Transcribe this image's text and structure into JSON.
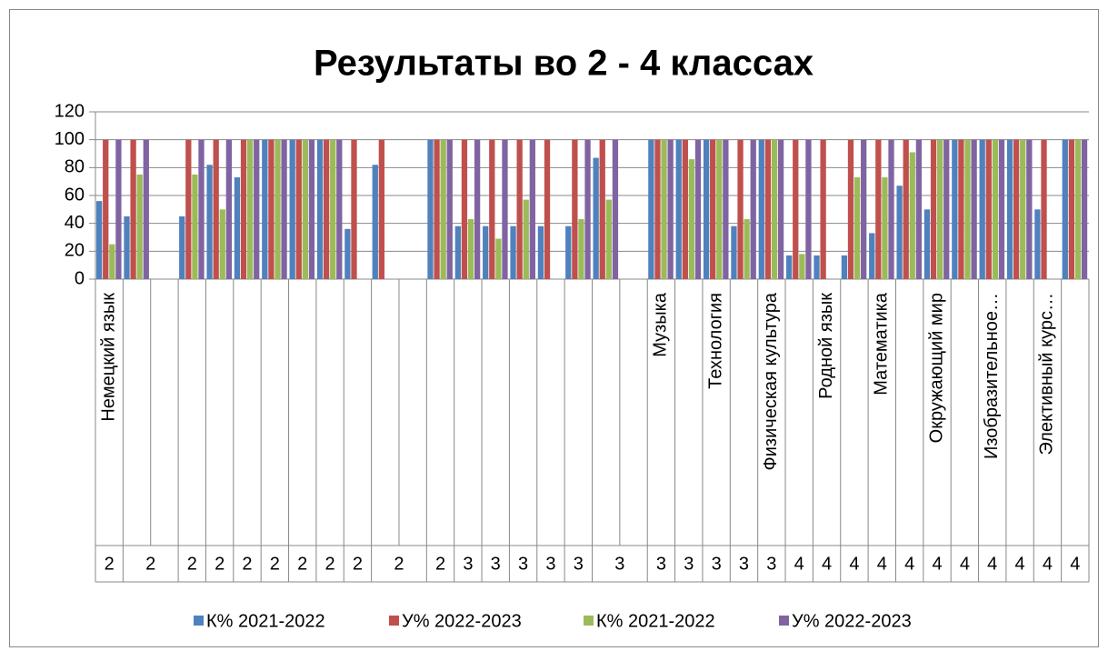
{
  "chart_data": {
    "type": "bar",
    "title": "Результаты во 2 - 4 классах",
    "categories": [
      "Немецкий язык",
      null,
      null,
      null,
      null,
      null,
      null,
      null,
      null,
      null,
      null,
      null,
      null,
      null,
      null,
      null,
      null,
      null,
      null,
      null,
      "Музыка",
      null,
      "Технология",
      null,
      "Физическая культура",
      null,
      "Родной язык",
      null,
      "Математика",
      null,
      "Окружающий мир",
      null,
      "Изобразительное…",
      null,
      "Элективный курс…",
      null
    ],
    "grades": [
      "2",
      "2",
      null,
      "2",
      "2",
      "2",
      "2",
      "2",
      "2",
      "2",
      "2",
      null,
      "2",
      "3",
      "3",
      "3",
      "3",
      "3",
      "3",
      null,
      "3",
      "3",
      "3",
      "3",
      "3",
      "4",
      "4",
      "4",
      "4",
      "4",
      "4",
      "4",
      "4",
      "4",
      "4",
      "4"
    ],
    "series": [
      {
        "name": "К% 2021-2022",
        "color": "#4f81bd",
        "values": [
          56,
          45,
          null,
          45,
          82,
          73,
          100,
          100,
          100,
          36,
          82,
          null,
          100,
          38,
          38,
          38,
          38,
          38,
          87,
          null,
          100,
          100,
          100,
          38,
          100,
          17,
          17,
          17,
          33,
          67,
          50,
          100,
          100,
          100,
          50,
          100
        ]
      },
      {
        "name": "У% 2022-2023",
        "color": "#c0504d",
        "values": [
          100,
          100,
          null,
          100,
          100,
          100,
          100,
          100,
          100,
          100,
          100,
          null,
          100,
          100,
          100,
          100,
          100,
          100,
          100,
          null,
          100,
          100,
          100,
          100,
          100,
          100,
          100,
          100,
          100,
          100,
          100,
          100,
          100,
          100,
          100,
          100
        ]
      },
      {
        "name": "К% 2021-2022",
        "color": "#9bbb59",
        "values": [
          25,
          75,
          null,
          75,
          50,
          100,
          100,
          100,
          100,
          null,
          null,
          null,
          100,
          43,
          29,
          57,
          null,
          43,
          57,
          null,
          100,
          86,
          100,
          43,
          100,
          18,
          null,
          73,
          73,
          91,
          100,
          100,
          100,
          100,
          null,
          100
        ]
      },
      {
        "name": "У% 2022-2023",
        "color": "#8064a2",
        "values": [
          100,
          100,
          null,
          100,
          100,
          100,
          100,
          100,
          100,
          null,
          null,
          null,
          100,
          100,
          100,
          100,
          null,
          100,
          100,
          null,
          100,
          100,
          100,
          100,
          100,
          100,
          null,
          100,
          100,
          100,
          100,
          100,
          100,
          100,
          null,
          100
        ]
      }
    ],
    "ylim": [
      0,
      120
    ],
    "yticks": [
      0,
      20,
      40,
      60,
      80,
      100,
      120
    ],
    "grid": true,
    "legend": "bottom"
  }
}
